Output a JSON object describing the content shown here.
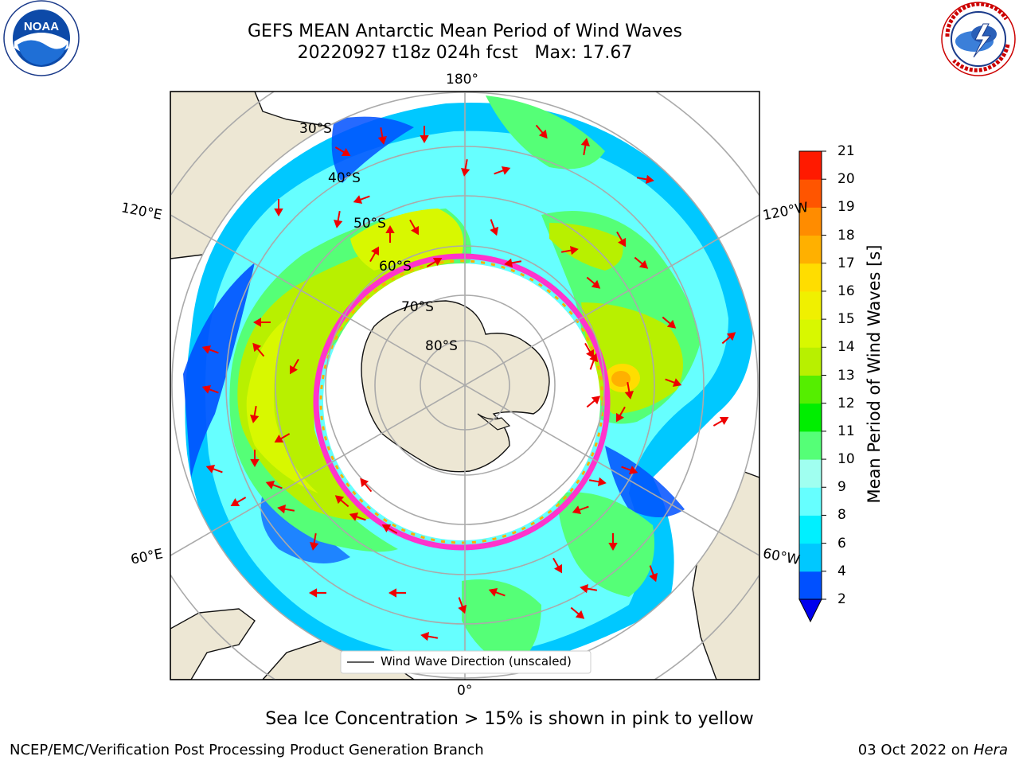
{
  "header": {
    "title_line1": "GEFS MEAN Antarctic Mean Period of Wind Waves",
    "title_line2": "20220927 t18z 024h fcst   Max: 17.67"
  },
  "logos": {
    "left": "noaa-logo",
    "right": "national-weather-service-logo"
  },
  "map": {
    "projection": "south-polar-stereographic",
    "lon_labels": [
      "180°",
      "120°E",
      "120°W",
      "60°E",
      "60°W",
      "0°"
    ],
    "lat_labels": [
      "30°S",
      "40°S",
      "50°S",
      "60°S",
      "70°S",
      "80°S"
    ],
    "legend_text": "Wind Wave Direction (unscaled)"
  },
  "colorbar": {
    "title": "Mean Period of Wind Waves [s]",
    "ticks": [
      "2",
      "4",
      "6",
      "8",
      "9",
      "10",
      "11",
      "12",
      "13",
      "14",
      "15",
      "16",
      "17",
      "18",
      "19",
      "20",
      "21"
    ],
    "colors": [
      "#0050ff",
      "#00c8ff",
      "#00f0ff",
      "#66ffff",
      "#a0fff0",
      "#55ff77",
      "#00ee00",
      "#55ee00",
      "#b8f000",
      "#d8f800",
      "#f0f000",
      "#ffdd00",
      "#ffb000",
      "#ff8c00",
      "#ff5500",
      "#ff1a00"
    ],
    "extend_color": "#0000ee"
  },
  "footer": {
    "ice_note": "Sea Ice Concentration > 15% is shown in pink to yellow",
    "credit": "NCEP/EMC/Verification Post Processing Product Generation Branch",
    "date": "03 Oct 2022 on",
    "host": "Hera"
  }
}
